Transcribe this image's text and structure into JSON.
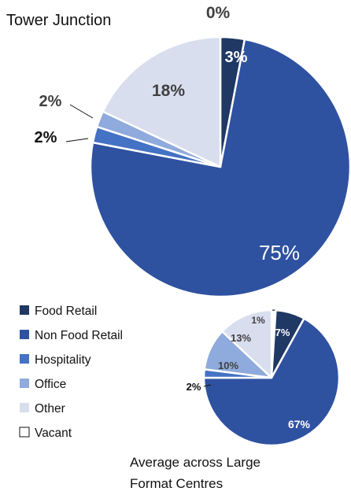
{
  "chart_data": [
    {
      "type": "pie",
      "title": "Tower Junction",
      "categories": [
        "Food Retail",
        "Non Food Retail",
        "Hospitality",
        "Office",
        "Other",
        "Vacant"
      ],
      "values": [
        3,
        75,
        2,
        2,
        18,
        0
      ],
      "labels": [
        "3%",
        "75%",
        "2%",
        "2%",
        "18%",
        "0%"
      ]
    },
    {
      "type": "pie",
      "title": "Average across Large Format Centres",
      "title_lines": [
        "Average across Large",
        "Format Centres"
      ],
      "categories": [
        "Food Retail",
        "Non Food Retail",
        "Hospitality",
        "Office",
        "Other",
        "Vacant"
      ],
      "values": [
        7,
        67,
        2,
        10,
        13,
        1
      ],
      "labels": [
        "7%",
        "67%",
        "2%",
        "10%",
        "13%",
        "1%"
      ]
    }
  ],
  "legend": [
    {
      "label": "Food Retail",
      "color": "#1f3864"
    },
    {
      "label": "Non Food Retail",
      "color": "#2f52a0"
    },
    {
      "label": "Hospitality",
      "color": "#4472c4"
    },
    {
      "label": "Office",
      "color": "#8faadc"
    },
    {
      "label": "Other",
      "color": "#d9deef"
    },
    {
      "label": "Vacant",
      "color": "#ffffff"
    }
  ]
}
